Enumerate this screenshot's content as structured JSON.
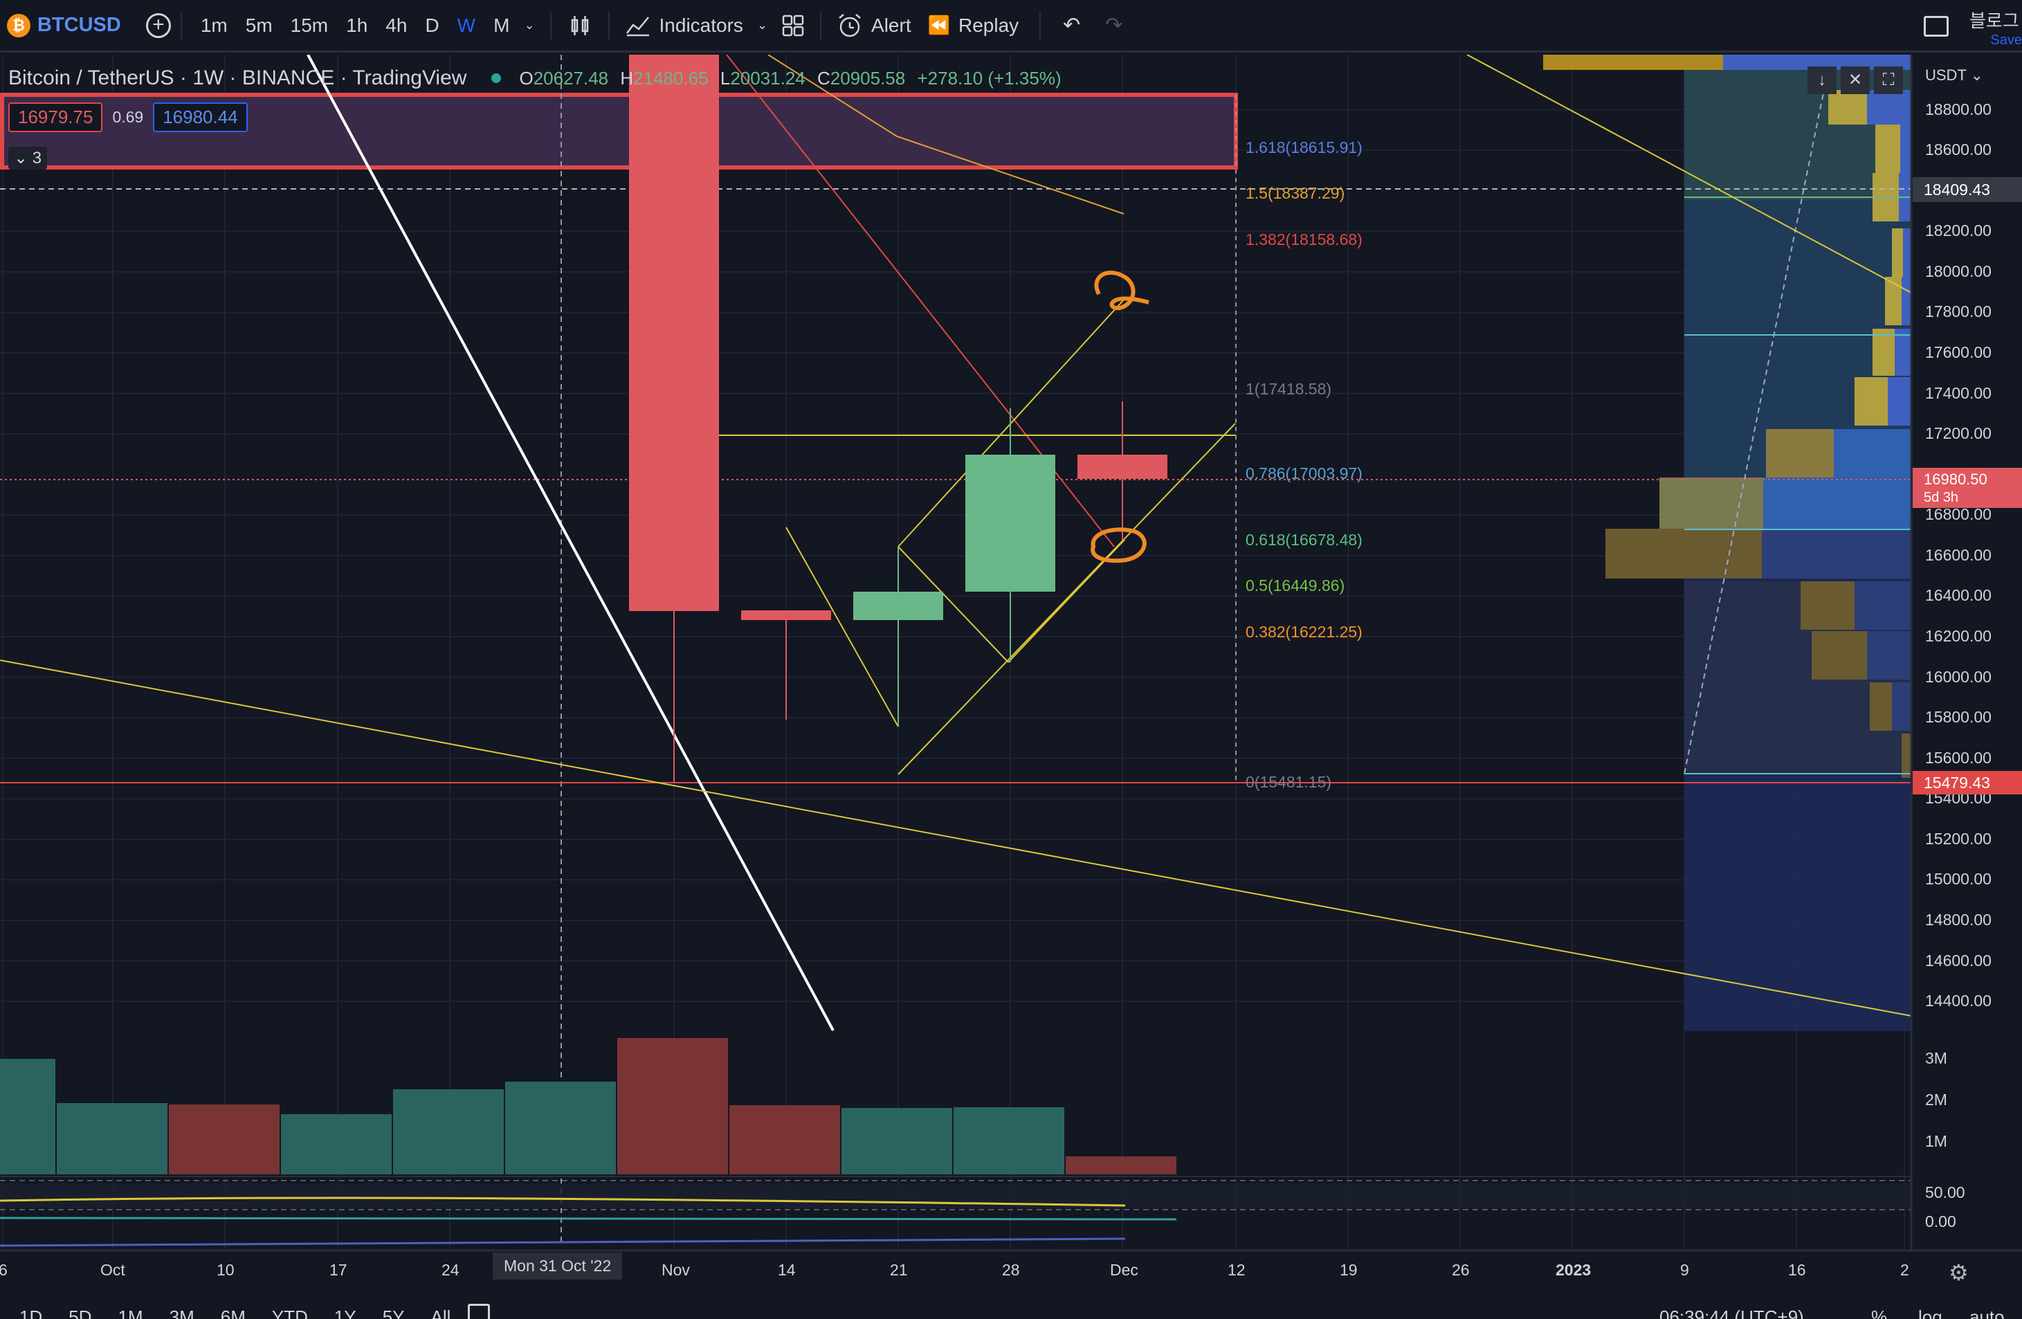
{
  "toolbar": {
    "symbol": "BTCUSD",
    "timeframes": [
      "1m",
      "5m",
      "15m",
      "1h",
      "4h",
      "D",
      "W",
      "M"
    ],
    "active_timeframe": "W",
    "indicators_label": "Indicators",
    "alert_label": "Alert",
    "replay_label": "Replay",
    "right_text": "블로그",
    "save_label": "Save"
  },
  "legend": {
    "title": "Bitcoin / TetherUS · 1W · BINANCE · TradingView",
    "o_label": "O",
    "o_value": "20627.48",
    "h_label": "H",
    "h_value": "21480.65",
    "l_label": "L",
    "l_value": "20031.24",
    "c_label": "C",
    "c_value": "20905.58",
    "change": "+278.10 (+1.35%)",
    "bid": "16979.75",
    "spread": "0.69",
    "ask": "16980.44",
    "indicators_count": "3"
  },
  "price_axis": {
    "currency": "USDT",
    "labels": [
      "18800.00",
      "18600.00",
      "18200.00",
      "18000.00",
      "17800.00",
      "17600.00",
      "17400.00",
      "17200.00",
      "16800.00",
      "16600.00",
      "16400.00",
      "16200.00",
      "16000.00",
      "15800.00",
      "15600.00",
      "15400.00",
      "15200.00",
      "15000.00",
      "14800.00",
      "14600.00",
      "14400.00"
    ],
    "crosshair_price": "18409.43",
    "current_price": "16980.50",
    "countdown": "5d 3h",
    "line_price": "15479.43",
    "volume_labels": [
      "3M",
      "2M",
      "1M"
    ],
    "osc_labels": [
      "50.00",
      "0.00"
    ]
  },
  "fib_levels": [
    {
      "label": "1.618(18615.91)",
      "color": "#5b7fe0"
    },
    {
      "label": "1.5(18387.29)",
      "color": "#e0a030"
    },
    {
      "label": "1.382(18158.68)",
      "color": "#e04848"
    },
    {
      "label": "1(17418.58)",
      "color": "#787b86"
    },
    {
      "label": "0.786(17003.97)",
      "color": "#5aa0d0"
    },
    {
      "label": "0.618(16678.48)",
      "color": "#5bbf80"
    },
    {
      "label": "0.5(16449.86)",
      "color": "#7bc043"
    },
    {
      "label": "0.382(16221.25)",
      "color": "#f0902a"
    },
    {
      "label": "0(15481.15)",
      "color": "#787b86"
    }
  ],
  "time_axis": {
    "labels": [
      "6",
      "Oct",
      "10",
      "17",
      "24",
      "Nov",
      "14",
      "21",
      "28",
      "Dec",
      "12",
      "19",
      "26",
      "2023",
      "9",
      "16",
      "2"
    ],
    "crosshair_date": "Mon 31 Oct '22"
  },
  "bottom_bar": {
    "ranges": [
      "1D",
      "5D",
      "1M",
      "3M",
      "6M",
      "YTD",
      "1Y",
      "5Y",
      "All"
    ],
    "time": "06:39:44 (UTC+9)",
    "percent": "%",
    "log": "log",
    "auto": "auto"
  },
  "colors": {
    "bg": "#131722",
    "up": "#6ab88a",
    "down": "#e0585f",
    "accent": "#2962ff"
  }
}
